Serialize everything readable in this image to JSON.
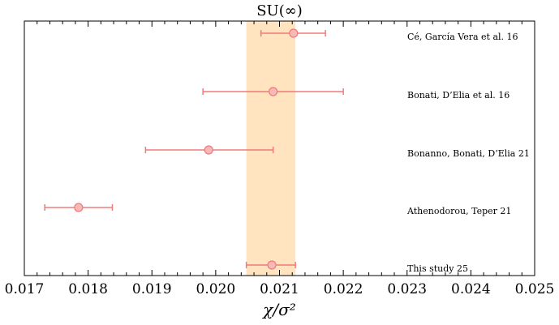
{
  "chart_data": {
    "type": "scatter",
    "title": "SU(∞)",
    "xlabel": "χ/σ²",
    "ylabel": "",
    "xlim": [
      0.017,
      0.025
    ],
    "x_ticks": [
      "0.017",
      "0.018",
      "0.019",
      "0.020",
      "0.021",
      "0.022",
      "0.023",
      "0.024",
      "0.025"
    ],
    "grid": false,
    "band": {
      "x_min": 0.02048,
      "x_max": 0.02125,
      "color": "#FFE4BF"
    },
    "marker_color": "#F07A7A",
    "points": [
      {
        "label": "Cé, García Vera et al. 16",
        "x": 0.02122,
        "err_low": 0.02071,
        "err_high": 0.02172
      },
      {
        "label": "Bonati, D’Elia et al. 16",
        "x": 0.0209,
        "err_low": 0.0198,
        "err_high": 0.022
      },
      {
        "label": "Bonanno, Bonati, D’Elia 21",
        "x": 0.01989,
        "err_low": 0.0189,
        "err_high": 0.0209
      },
      {
        "label": "Athenodorou, Teper 21",
        "x": 0.01785,
        "err_low": 0.01732,
        "err_high": 0.01838
      },
      {
        "label": "This study 25",
        "x": 0.02088,
        "err_low": 0.02048,
        "err_high": 0.02125
      }
    ]
  }
}
